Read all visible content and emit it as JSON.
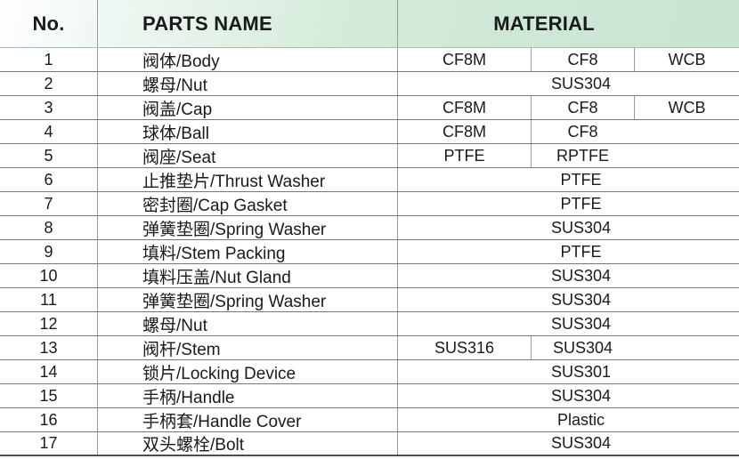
{
  "table": {
    "header": {
      "no": "No.",
      "parts_name": "PARTS NAME",
      "material": "MATERIAL"
    },
    "material_subcolumns": 3,
    "rows": [
      {
        "no": "1",
        "name": "阀体/Body",
        "materials": [
          {
            "text": "CF8M",
            "span": 1
          },
          {
            "text": "CF8",
            "span": 1
          },
          {
            "text": "WCB",
            "span": 1
          }
        ]
      },
      {
        "no": "2",
        "name": "螺母/Nut",
        "materials": [
          {
            "text": "SUS304",
            "span": 3
          }
        ]
      },
      {
        "no": "3",
        "name": "阀盖/Cap",
        "materials": [
          {
            "text": "CF8M",
            "span": 1
          },
          {
            "text": "CF8",
            "span": 1
          },
          {
            "text": "WCB",
            "span": 1
          }
        ]
      },
      {
        "no": "4",
        "name": "球体/Ball",
        "materials": [
          {
            "text": "CF8M",
            "span": 1
          },
          {
            "text": "CF8",
            "span": 2
          }
        ]
      },
      {
        "no": "5",
        "name": "阀座/Seat",
        "materials": [
          {
            "text": "PTFE",
            "span": 1
          },
          {
            "text": "RPTFE",
            "span": 2
          }
        ]
      },
      {
        "no": "6",
        "name": "止推垫片/Thrust Washer",
        "materials": [
          {
            "text": "PTFE",
            "span": 3
          }
        ]
      },
      {
        "no": "7",
        "name": "密封圈/Cap Gasket",
        "materials": [
          {
            "text": "PTFE",
            "span": 3
          }
        ]
      },
      {
        "no": "8",
        "name": "弹簧垫圈/Spring Washer",
        "materials": [
          {
            "text": "SUS304",
            "span": 3
          }
        ]
      },
      {
        "no": "9",
        "name": "填料/Stem Packing",
        "materials": [
          {
            "text": "PTFE",
            "span": 3
          }
        ]
      },
      {
        "no": "10",
        "name": "填料压盖/Nut Gland",
        "materials": [
          {
            "text": "SUS304",
            "span": 3
          }
        ]
      },
      {
        "no": "11",
        "name": "弹簧垫圈/Spring Washer",
        "materials": [
          {
            "text": "SUS304",
            "span": 3
          }
        ]
      },
      {
        "no": "12",
        "name": "螺母/Nut",
        "materials": [
          {
            "text": "SUS304",
            "span": 3
          }
        ]
      },
      {
        "no": "13",
        "name": "阀杆/Stem",
        "materials": [
          {
            "text": "SUS316",
            "span": 1
          },
          {
            "text": "SUS304",
            "span": 2
          }
        ]
      },
      {
        "no": "14",
        "name": "锁片/Locking Device",
        "materials": [
          {
            "text": "SUS301",
            "span": 3
          }
        ]
      },
      {
        "no": "15",
        "name": "手柄/Handle",
        "materials": [
          {
            "text": "SUS304",
            "span": 3
          }
        ]
      },
      {
        "no": "16",
        "name": "手柄套/Handle Cover",
        "materials": [
          {
            "text": "Plastic",
            "span": 3
          }
        ]
      },
      {
        "no": "17",
        "name": "双头螺栓/Bolt",
        "materials": [
          {
            "text": "SUS304",
            "span": 3
          }
        ]
      }
    ]
  },
  "colors": {
    "header_green": "#c8e5d2",
    "header_white": "#ffffff",
    "row_line": "#787878",
    "column_line": "#9a9a9a",
    "bottom_line": "#4d4d4d",
    "text": "#1a1a1a"
  }
}
